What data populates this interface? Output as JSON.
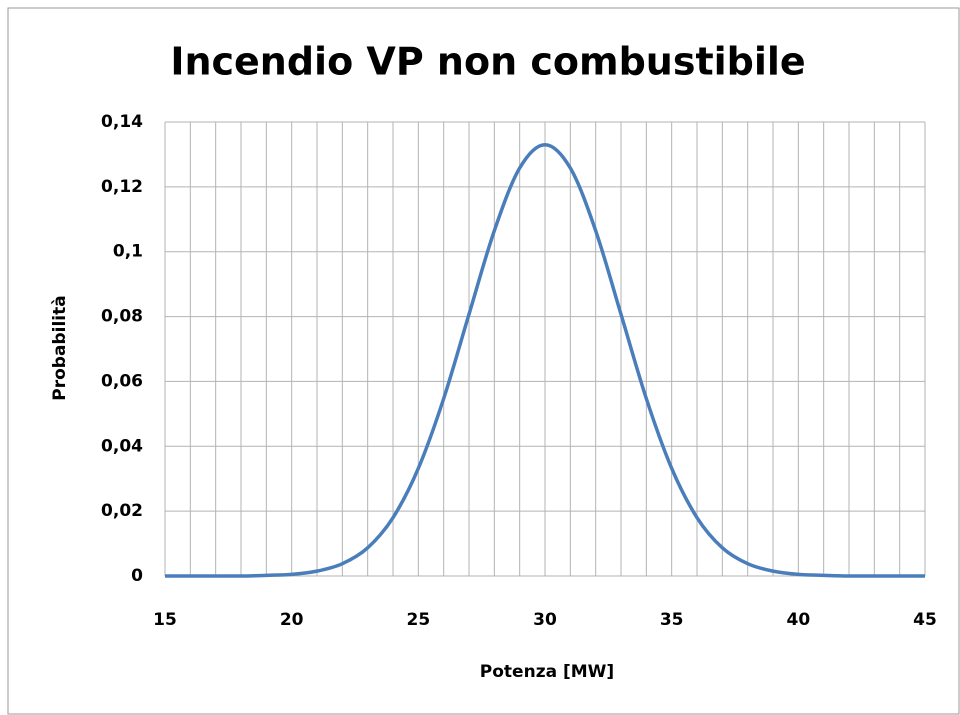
{
  "chart_data": {
    "type": "line",
    "title": "Incendio VP non combustibile",
    "xlabel": "Potenza [MW]",
    "ylabel": "Probabilità",
    "x": [
      15,
      16,
      17,
      18,
      19,
      20,
      21,
      22,
      23,
      24,
      25,
      26,
      27,
      28,
      29,
      30,
      31,
      32,
      33,
      34,
      35,
      36,
      37,
      38,
      39,
      40,
      41,
      42,
      43,
      44,
      45
    ],
    "series": [
      {
        "name": "Probabilità",
        "color": "#4a7ebb",
        "values": [
          0,
          0,
          0,
          0.0,
          0.0002,
          0.0005,
          0.0015,
          0.0038,
          0.0087,
          0.018,
          0.0332,
          0.0547,
          0.0807,
          0.1065,
          0.1258,
          0.133,
          0.1258,
          0.1065,
          0.0807,
          0.0547,
          0.0332,
          0.018,
          0.0087,
          0.0038,
          0.0015,
          0.0005,
          0.0002,
          0.0,
          0,
          0,
          0
        ]
      }
    ],
    "xlim": [
      15,
      45
    ],
    "xticks": [
      15,
      20,
      25,
      30,
      35,
      40,
      45
    ],
    "xminorticks": [
      15,
      16,
      17,
      18,
      19,
      20,
      21,
      22,
      23,
      24,
      25,
      26,
      27,
      28,
      29,
      30,
      31,
      32,
      33,
      34,
      35,
      36,
      37,
      38,
      39,
      40,
      41,
      42,
      43,
      44,
      45
    ],
    "ylim": [
      0,
      0.14
    ],
    "yticks": [
      0,
      {
        "value": 0.02,
        "label": "0,02"
      },
      {
        "value": 0.04,
        "label": "0,04"
      },
      {
        "value": 0.06,
        "label": "0,06"
      },
      {
        "value": 0.08,
        "label": "0,08"
      },
      {
        "value": 0.1,
        "label": "0,1"
      },
      {
        "value": 0.12,
        "label": "0,12"
      },
      {
        "value": 0.14,
        "label": "0,14"
      }
    ],
    "grid": true,
    "legend": false
  }
}
